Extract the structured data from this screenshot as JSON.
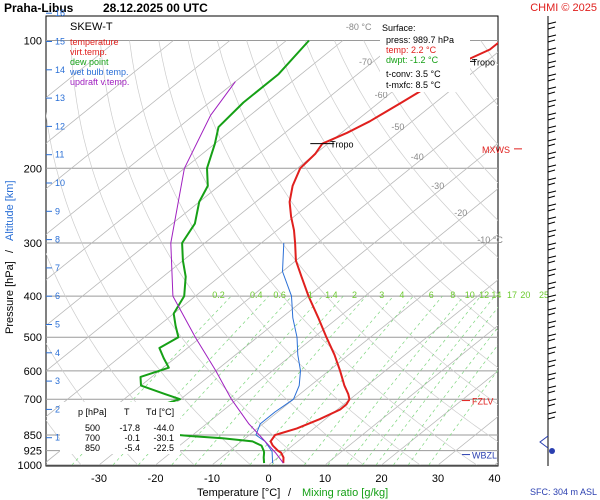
{
  "header": {
    "station": "Praha-Libus",
    "datetime": "28.12.2025 00 UTC",
    "credit": "CHMI © 2025"
  },
  "legend": {
    "diagram_type": "SKEW-T",
    "items": [
      {
        "label": "temperature",
        "color": "#e0201e"
      },
      {
        "label": "virt.temp.",
        "color": "#e0201e"
      },
      {
        "label": "dew point",
        "color": "#16a016"
      },
      {
        "label": "wet bulb temp.",
        "color": "#2a6fd6"
      },
      {
        "label": "updraft v.temp.",
        "color": "#a020c0"
      }
    ]
  },
  "surface_box": {
    "title": "Surface:",
    "press": "press: 989.7 hPa",
    "temp": "temp: 2.2 °C",
    "dwpt": "dwpt: -1.2 °C",
    "tconv": "t-conv: 3.5 °C",
    "tmxfc": "t-mxfc: 8.5 °C"
  },
  "data_table": {
    "headers": [
      "p [hPa]",
      "T",
      "Td [°C]"
    ],
    "rows": [
      [
        "500",
        "-17.8",
        "-44.0"
      ],
      [
        "700",
        "-0.1",
        "-30.1"
      ],
      [
        "850",
        "-5.4",
        "-22.5"
      ]
    ]
  },
  "level_labels": {
    "tropo": "Tropo",
    "mxws": "MXWS",
    "fzlv": "FZLV",
    "wbzl": "WBZL",
    "sfc": "SFC: 304 m ASL"
  },
  "chart_data": {
    "type": "line",
    "xlabel": "Temperature [°C]",
    "xlabel_sep": "/",
    "xlabel2": "Mixing ratio [g/kg]",
    "ylabel": "Pressure [hPa]",
    "ylabel_sep": "/",
    "ylabel2": "Altitude [km]",
    "x_ticks": [
      "-30",
      "-20",
      "-10",
      "0",
      "10",
      "20",
      "30",
      "40"
    ],
    "x_tick_values": [
      -30,
      -20,
      -10,
      0,
      10,
      20,
      30,
      40
    ],
    "p_ticks": [
      "100",
      "200",
      "300",
      "400",
      "500",
      "600",
      "700",
      "850",
      "925",
      "1000"
    ],
    "p_tick_values": [
      100,
      200,
      300,
      400,
      500,
      600,
      700,
      850,
      925,
      1000
    ],
    "km_ticks": [
      "16",
      "15",
      "14",
      "13",
      "12",
      "11",
      "10",
      "9",
      "8",
      "7",
      "6",
      "5",
      "4",
      "3",
      "2",
      "1"
    ],
    "km_tick_values": [
      16,
      15,
      14,
      13,
      12,
      11,
      10,
      9,
      8,
      7,
      6,
      5,
      4,
      3,
      2,
      1
    ],
    "isotherm_labels": [
      "-80 °C",
      "-70",
      "-60",
      "-50",
      "-40",
      "-30",
      "-20",
      "-10 °C"
    ],
    "isotherm_values": [
      -80,
      -70,
      -60,
      -50,
      -40,
      -30,
      -20,
      -10
    ],
    "mixing_ratio_labels": [
      "0.2",
      "0.4",
      "0.6",
      "1",
      "1.4",
      "2",
      "3",
      "4",
      "6",
      "8",
      "10",
      "12",
      "14",
      "17",
      "20",
      "25"
    ],
    "mixing_ratio_values": [
      0.2,
      0.4,
      0.6,
      1,
      1.4,
      2,
      3,
      4,
      6,
      8,
      10,
      12,
      14,
      17,
      20,
      25
    ],
    "tropopause_pressures": [
      112,
      175
    ],
    "mxws_pressure": 180,
    "fzlv_pressure": 705,
    "wbzl_pressure": 945,
    "series": [
      {
        "name": "temperature",
        "color": "#e0201e",
        "points": [
          [
            989.7,
            2.2
          ],
          [
            960,
            1
          ],
          [
            935,
            -0.5
          ],
          [
            925,
            -1.5
          ],
          [
            900,
            -3.5
          ],
          [
            880,
            -4.8
          ],
          [
            850,
            -5.4
          ],
          [
            820,
            -3
          ],
          [
            780,
            -1
          ],
          [
            740,
            0.5
          ],
          [
            720,
            0.5
          ],
          [
            700,
            -0.1
          ],
          [
            680,
            -1.5
          ],
          [
            650,
            -4
          ],
          [
            600,
            -8
          ],
          [
            550,
            -12.5
          ],
          [
            500,
            -17.8
          ],
          [
            450,
            -23.5
          ],
          [
            400,
            -30
          ],
          [
            360,
            -35.5
          ],
          [
            330,
            -40
          ],
          [
            300,
            -44
          ],
          [
            280,
            -47
          ],
          [
            260,
            -50.5
          ],
          [
            240,
            -54
          ],
          [
            220,
            -57
          ],
          [
            200,
            -59.5
          ],
          [
            185,
            -60
          ],
          [
            175,
            -61
          ],
          [
            165,
            -59
          ],
          [
            155,
            -57.5
          ],
          [
            140,
            -56
          ],
          [
            130,
            -55
          ],
          [
            120,
            -52
          ],
          [
            112,
            -54
          ],
          [
            105,
            -52
          ],
          [
            100,
            -52
          ]
        ]
      },
      {
        "name": "dew point",
        "color": "#16a016",
        "points": [
          [
            989.7,
            -1.2
          ],
          [
            960,
            -2.5
          ],
          [
            935,
            -3.5
          ],
          [
            925,
            -4
          ],
          [
            900,
            -5.5
          ],
          [
            880,
            -8
          ],
          [
            865,
            -14
          ],
          [
            855,
            -20
          ],
          [
            850,
            -22.5
          ],
          [
            840,
            -28
          ],
          [
            830,
            -33
          ],
          [
            800,
            -35
          ],
          [
            760,
            -34
          ],
          [
            720,
            -32
          ],
          [
            700,
            -30.1
          ],
          [
            680,
            -34
          ],
          [
            650,
            -40
          ],
          [
            620,
            -42
          ],
          [
            590,
            -39
          ],
          [
            560,
            -42
          ],
          [
            530,
            -45
          ],
          [
            500,
            -44
          ],
          [
            470,
            -47
          ],
          [
            440,
            -50
          ],
          [
            400,
            -52
          ],
          [
            360,
            -56
          ],
          [
            330,
            -60
          ],
          [
            300,
            -64
          ],
          [
            270,
            -66
          ],
          [
            240,
            -70
          ],
          [
            220,
            -72
          ],
          [
            200,
            -76
          ],
          [
            175,
            -80
          ],
          [
            160,
            -83
          ],
          [
            140,
            -84
          ],
          [
            120,
            -84
          ],
          [
            100,
            -86
          ]
        ]
      },
      {
        "name": "wet bulb temp.",
        "color": "#2a6fd6",
        "points": [
          [
            989.7,
            0.3
          ],
          [
            930,
            -2.3
          ],
          [
            880,
            -5.8
          ],
          [
            850,
            -8.8
          ],
          [
            800,
            -10.5
          ],
          [
            750,
            -10.5
          ],
          [
            700,
            -10
          ],
          [
            650,
            -12
          ],
          [
            600,
            -15
          ],
          [
            550,
            -19
          ],
          [
            500,
            -23
          ],
          [
            450,
            -28
          ],
          [
            400,
            -33
          ],
          [
            350,
            -40
          ],
          [
            300,
            -46
          ]
        ]
      },
      {
        "name": "updraft v.temp.",
        "color": "#a020c0",
        "points": [
          [
            989.7,
            2.2
          ],
          [
            935,
            -1.5
          ],
          [
            850,
            -8.2
          ],
          [
            800,
            -12.5
          ],
          [
            700,
            -21
          ],
          [
            600,
            -30
          ],
          [
            500,
            -41
          ],
          [
            400,
            -54
          ],
          [
            300,
            -66
          ],
          [
            200,
            -80
          ],
          [
            150,
            -87
          ],
          [
            125,
            -90
          ]
        ]
      }
    ]
  }
}
